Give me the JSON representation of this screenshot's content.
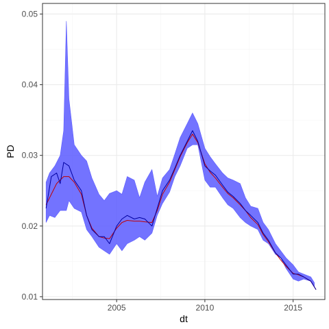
{
  "chart_data": {
    "type": "line",
    "xlabel": "dt",
    "ylabel": "PD",
    "xlim": [
      2000.8,
      2016.8
    ],
    "ylim": [
      0.0096,
      0.0515
    ],
    "x_ticks": [
      2005,
      2010,
      2015
    ],
    "x_minor_ticks": [
      2002.5,
      2007.5,
      2012.5
    ],
    "y_ticks": [
      0.01,
      0.02,
      0.03,
      0.04,
      0.05
    ],
    "y_tick_labels": [
      "0.01",
      "0.02",
      "0.03",
      "0.04",
      "0.05"
    ],
    "y_minor_ticks": [
      0.015,
      0.025,
      0.035,
      0.045
    ],
    "grid": true,
    "colors": {
      "band": "#5b5bff",
      "blue_line": "#0000a0",
      "red_line": "#c00000",
      "panel_border": "#333333",
      "major_grid": "#ebebeb",
      "minor_grid": "#f5f5f5"
    },
    "series": [
      {
        "kind": "band",
        "x": [
          2001.0,
          2001.2,
          2001.5,
          2001.8,
          2002.0,
          2002.15,
          2002.3,
          2002.6,
          2003.0,
          2003.3,
          2003.6,
          2004.0,
          2004.3,
          2004.6,
          2005.0,
          2005.3,
          2005.6,
          2006.0,
          2006.3,
          2006.6,
          2007.0,
          2007.3,
          2007.6,
          2008.0,
          2008.3,
          2008.6,
          2009.0,
          2009.3,
          2009.6,
          2010.0,
          2010.3,
          2010.6,
          2011.0,
          2011.3,
          2011.6,
          2012.0,
          2012.3,
          2012.6,
          2013.0,
          2013.3,
          2013.6,
          2014.0,
          2014.3,
          2014.6,
          2015.0,
          2015.3,
          2015.6,
          2016.0,
          2016.2
        ],
        "low": [
          0.0205,
          0.0215,
          0.0212,
          0.0222,
          0.0222,
          0.0222,
          0.0236,
          0.0225,
          0.022,
          0.0195,
          0.0185,
          0.017,
          0.0165,
          0.016,
          0.0175,
          0.0165,
          0.0175,
          0.018,
          0.0185,
          0.018,
          0.019,
          0.0215,
          0.0232,
          0.0248,
          0.027,
          0.0285,
          0.031,
          0.0315,
          0.0315,
          0.0265,
          0.0255,
          0.0255,
          0.024,
          0.023,
          0.0225,
          0.0212,
          0.0205,
          0.02,
          0.0195,
          0.018,
          0.0175,
          0.016,
          0.0155,
          0.014,
          0.0125,
          0.0122,
          0.0125,
          0.0122,
          0.0115
        ],
        "high": [
          0.0262,
          0.0275,
          0.0285,
          0.03,
          0.0335,
          0.049,
          0.038,
          0.0315,
          0.03,
          0.0292,
          0.0268,
          0.0245,
          0.0236,
          0.0246,
          0.025,
          0.0245,
          0.027,
          0.0265,
          0.024,
          0.0262,
          0.028,
          0.0242,
          0.0268,
          0.028,
          0.0302,
          0.0325,
          0.0345,
          0.036,
          0.0345,
          0.031,
          0.0298,
          0.0288,
          0.0275,
          0.0268,
          0.0265,
          0.026,
          0.024,
          0.0228,
          0.0225,
          0.0205,
          0.0195,
          0.0175,
          0.0165,
          0.0155,
          0.0145,
          0.0135,
          0.0132,
          0.0128,
          0.012
        ]
      },
      {
        "kind": "line",
        "color_key": "blue_line",
        "x": [
          2001.0,
          2001.3,
          2001.6,
          2001.8,
          2002.0,
          2002.3,
          2002.6,
          2003.0,
          2003.3,
          2003.6,
          2004.0,
          2004.3,
          2004.6,
          2005.0,
          2005.3,
          2005.6,
          2006.0,
          2006.3,
          2006.6,
          2007.0,
          2007.3,
          2007.6,
          2008.0,
          2008.3,
          2008.6,
          2009.0,
          2009.3,
          2009.6,
          2010.0,
          2010.3,
          2010.6,
          2011.0,
          2011.3,
          2011.6,
          2012.0,
          2012.3,
          2012.6,
          2013.0,
          2013.3,
          2013.6,
          2014.0,
          2014.3,
          2014.6,
          2015.0,
          2015.3,
          2015.6,
          2016.0,
          2016.3
        ],
        "y": [
          0.0225,
          0.027,
          0.0275,
          0.026,
          0.029,
          0.0285,
          0.0265,
          0.025,
          0.0215,
          0.0195,
          0.0185,
          0.0185,
          0.0175,
          0.02,
          0.021,
          0.0215,
          0.021,
          0.0212,
          0.021,
          0.02,
          0.0225,
          0.025,
          0.0265,
          0.0282,
          0.03,
          0.032,
          0.0335,
          0.032,
          0.0285,
          0.0278,
          0.0272,
          0.0258,
          0.0248,
          0.0242,
          0.0232,
          0.0222,
          0.0215,
          0.0205,
          0.019,
          0.018,
          0.0162,
          0.0155,
          0.0145,
          0.0132,
          0.0132,
          0.0128,
          0.0122,
          0.011
        ]
      },
      {
        "kind": "line",
        "color_key": "red_line",
        "x": [
          2001.0,
          2001.3,
          2001.6,
          2002.0,
          2002.3,
          2002.6,
          2003.0,
          2003.3,
          2003.6,
          2004.0,
          2004.3,
          2004.6,
          2005.0,
          2005.3,
          2005.6,
          2006.0,
          2006.3,
          2006.6,
          2007.0,
          2007.3,
          2007.6,
          2008.0,
          2008.3,
          2008.6,
          2009.0,
          2009.3,
          2009.6,
          2010.0,
          2010.3,
          2010.6,
          2011.0,
          2011.3,
          2011.6,
          2012.0,
          2012.3,
          2012.6,
          2013.0,
          2013.3,
          2013.6,
          2014.0,
          2014.3,
          2014.6,
          2015.0,
          2015.3,
          2015.6,
          2016.0,
          2016.3
        ],
        "y": [
          0.023,
          0.0245,
          0.026,
          0.027,
          0.027,
          0.0262,
          0.0245,
          0.0215,
          0.0197,
          0.0185,
          0.0183,
          0.0182,
          0.0197,
          0.0205,
          0.0208,
          0.0207,
          0.0207,
          0.0206,
          0.0205,
          0.0222,
          0.0245,
          0.0262,
          0.028,
          0.0298,
          0.0318,
          0.033,
          0.0318,
          0.0288,
          0.0276,
          0.0268,
          0.0255,
          0.0246,
          0.024,
          0.023,
          0.0222,
          0.0212,
          0.0202,
          0.0188,
          0.0178,
          0.0162,
          0.0152,
          0.0143,
          0.0133,
          0.0131,
          0.0128,
          0.0122,
          0.011
        ]
      }
    ]
  }
}
